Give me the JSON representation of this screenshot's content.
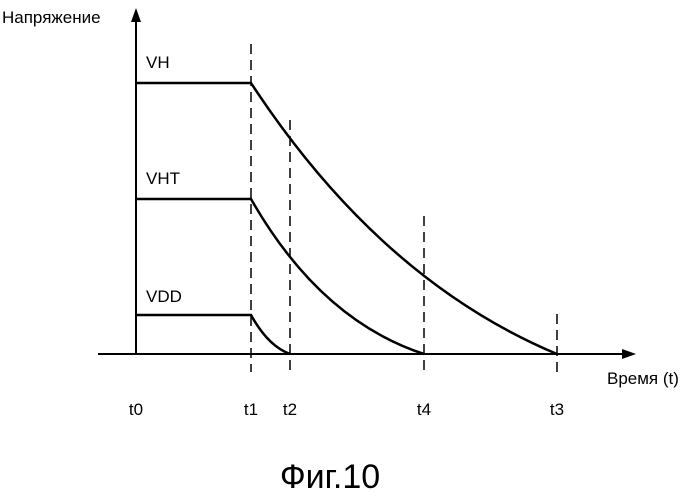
{
  "y_axis_label": "Напряжение",
  "x_axis_label": "Время (t)",
  "figure_title": "Фиг.10",
  "time_labels": {
    "t0": "t0",
    "t1": "t1",
    "t2": "t2",
    "t4": "t4",
    "t3": "t3"
  },
  "curves": {
    "vh": "VH",
    "vht": "VHT",
    "vdd": "VDD"
  }
}
